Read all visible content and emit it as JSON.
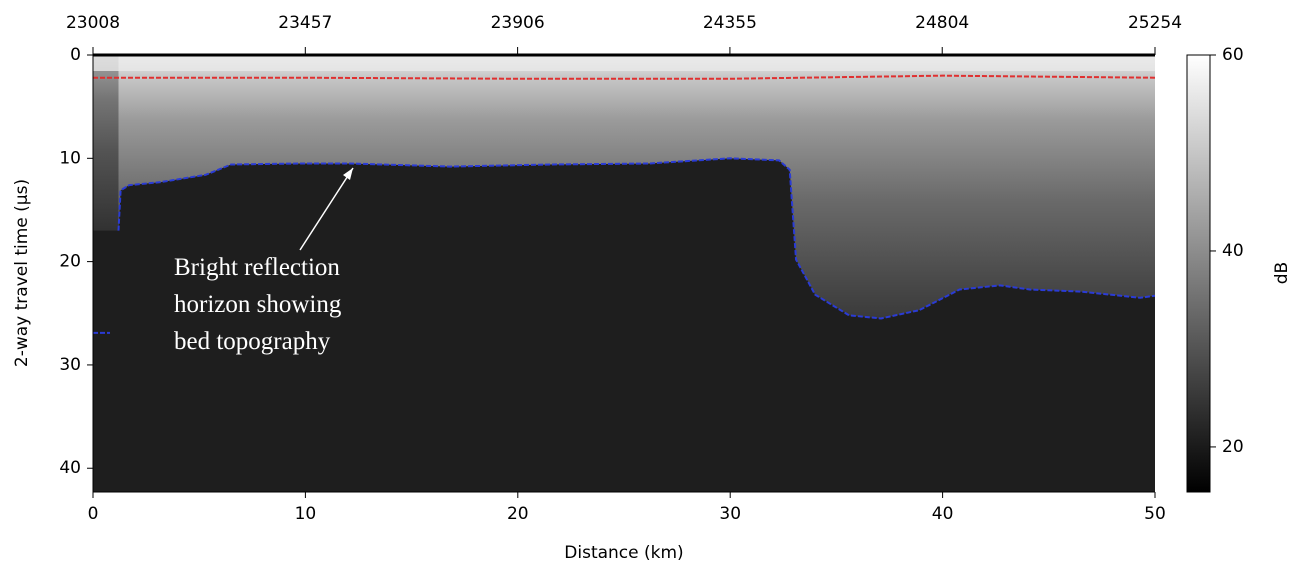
{
  "chart_data": {
    "type": "line",
    "xlabel": "Distance (km)",
    "ylabel": "2-way travel time (μs)",
    "xlim": [
      0,
      50
    ],
    "xticks": [
      0,
      10,
      20,
      30,
      40,
      50
    ],
    "x2lim": [
      23008,
      25254
    ],
    "x2ticks": [
      23008,
      23457,
      23906,
      24355,
      24804,
      25254
    ],
    "ylim": [
      0,
      42.3
    ],
    "yticks": [
      0,
      10,
      20,
      30,
      40
    ],
    "y_inverted": true,
    "colorbar": {
      "label": "dB",
      "clim": [
        15.4,
        60
      ],
      "ticks": [
        20,
        40,
        60
      ]
    },
    "annotation": [
      "Bright reflection",
      "horizon showing",
      "bed topography"
    ],
    "series": [
      {
        "color": "#e03030",
        "x": [
          0,
          10,
          20,
          30,
          40,
          50
        ],
        "values": [
          2.2,
          2.2,
          2.3,
          2.3,
          2.0,
          2.2
        ]
      },
      {
        "color": "#2a3bd6",
        "x": [
          0,
          0.8,
          1.0,
          1.2,
          1.3,
          1.7,
          3.2,
          5.3,
          6.5,
          9.7,
          12.1,
          16.8,
          21.5,
          26.2,
          30,
          32.3,
          32.8,
          33.1,
          34,
          35.6,
          37.1,
          38.9,
          40.8,
          42.7,
          44.1,
          46.5,
          49.3,
          50
        ],
        "values": [
          26.9,
          26.9,
          null,
          17,
          13.1,
          12.6,
          12.3,
          11.6,
          10.6,
          10.5,
          10.5,
          10.8,
          10.6,
          10.5,
          10,
          10.2,
          11.1,
          19.8,
          23.2,
          25.2,
          25.5,
          24.7,
          22.7,
          22.3,
          22.7,
          22.9,
          23.5,
          23.3
        ]
      }
    ]
  }
}
